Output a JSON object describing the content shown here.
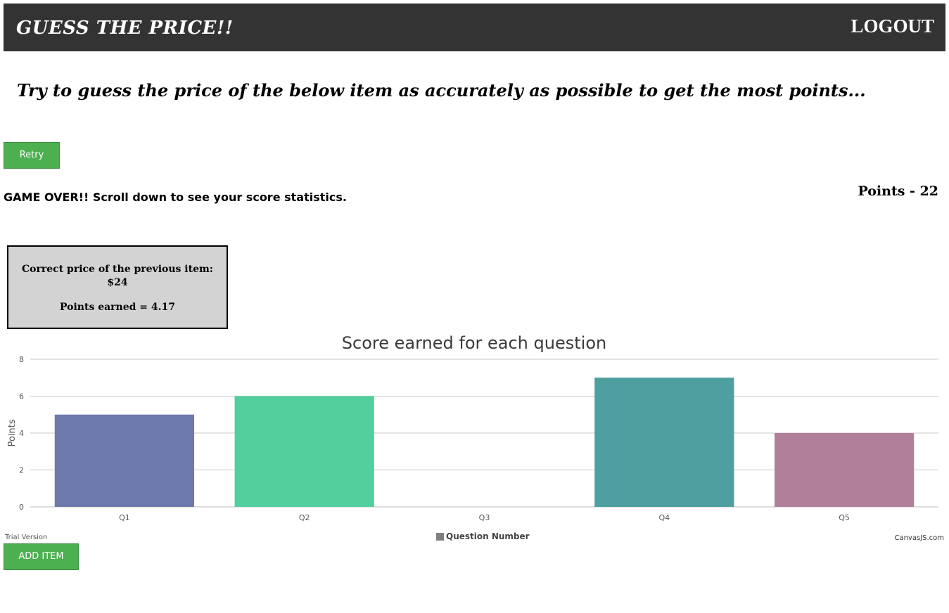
{
  "header": {
    "brand": "GUESS THE PRICE!!",
    "logout_label": "LOGOUT"
  },
  "instruction": "Try to guess the price of the below item as accurately as possible to get the most points...",
  "retry_label": "Retry",
  "status": {
    "game_over": "GAME OVER!! Scroll down to see your score statistics.",
    "points": "Points - 22"
  },
  "result_box": {
    "line1": "Correct price of the previous item:",
    "line2": "$24",
    "line3": "Points earned = 4.17"
  },
  "chart_data": {
    "type": "bar",
    "title": "Score earned for each question",
    "ylabel": "Points",
    "xlabel": "",
    "categories": [
      "Q1",
      "Q2",
      "Q3",
      "Q4",
      "Q5"
    ],
    "series": [
      {
        "name": "Question Number",
        "values": [
          5,
          6,
          0,
          7,
          4
        ]
      }
    ],
    "bar_colors": [
      "#6d78ab",
      "#51cf9d",
      "#4f9fa0",
      "#4f9fa0",
      "#b07f9a"
    ],
    "legend_color": "#808080",
    "ylim": [
      0,
      8
    ],
    "yticks": [
      0,
      2,
      4,
      6,
      8
    ],
    "grid": true,
    "legend_position": "bottom-center"
  },
  "chart_footer": {
    "trial": "Trial Version",
    "credit": "CanvasJS.com"
  },
  "add_item_label": "ADD ITEM"
}
